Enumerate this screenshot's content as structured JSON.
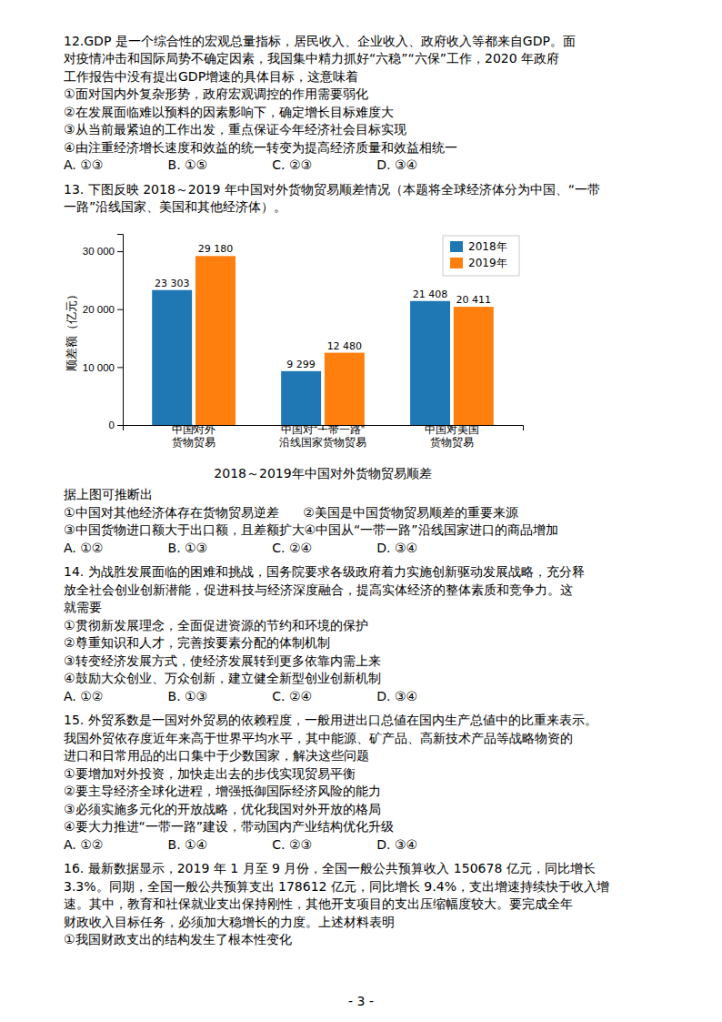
{
  "text_before": [
    [
      "12.GDP 是一个综合性的宏观总量指标，居民收入、企业收入、政府收入等都来自GDP。面",
      "对疫情冲击和国际局势不确定因素，我国集中精力抓好“六稳”“六保”工作，2020 年政府",
      "工作报告中没有提出GDP增速的具体目标，这意味着",
      "①面对国内外复杂形势，政府宏观调控的作用需要弱化",
      "②在发展面临难以预料的因素影响下，确定增长目标难度大",
      "③从当前最紧迫的工作出发，重点保证今年经济社会目标实现",
      "④由注重经济增长速度和效益的统一转变为提高经济质量和效益相统一",
      "A. ①③                B. ①⑤                C. ②③                D. ③④"
    ],
    [
      "13. 下图反映 2018～2019 年中国对外货物贸易顺差情况（本题将全球经济体分为中国、“一带",
      "一路”沿线国家、美国和其他经济体）。"
    ]
  ],
  "chart_data": {
    "type": "bar",
    "title": "2018～2019年中国对外货物贸易顺差",
    "y_label": "顺差额（亿元）",
    "categories": [
      "中国对外\n货物贸易",
      "中国对“一带一路”\n沿线国家货物贸易",
      "中国对美国\n货物贸易"
    ],
    "series": [
      {
        "name": "2018年",
        "values": [
          23303,
          9299,
          21408
        ],
        "value_labels": [
          "23 303",
          "9 299",
          "21 408"
        ]
      },
      {
        "name": "2019年",
        "values": [
          29180,
          12480,
          20411
        ],
        "value_labels": [
          "29 180",
          "12 480",
          "20 411"
        ]
      }
    ],
    "ylim": [
      0,
      33000
    ],
    "yticks": [
      0,
      {
        "value": 10000,
        "label": "10 000"
      },
      {
        "value": 20000,
        "label": "20 000"
      },
      {
        "value": 30000,
        "label": "30 000"
      }
    ],
    "grid": false,
    "legend": "upper right",
    "data_labels": true
  },
  "text_after": [
    [
      "据上图可推断出",
      "①中国对其他经济体存在货物贸易逆差      ②美国是中国货物贸易顺差的重要来源",
      "③中国货物进口额大于出口额，且差额扩大④中国从“一带一路”沿线国家进口的商品增加",
      "A. ①②                B. ①③                C. ②④                D. ③④"
    ],
    [
      "14. 为战胜发展面临的困难和挑战，国务院要求各级政府着力实施创新驱动发展战略，充分释",
      "放全社会创业创新潜能，促进科技与经济深度融合，提高实体经济的整体素质和竞争力。这",
      "就需要",
      "①贯彻新发展理念，全面促进资源的节约和环境的保护",
      "②尊重知识和人才，完善按要素分配的体制机制",
      "③转变经济发展方式，使经济发展转到更多依靠内需上来",
      "④鼓励大众创业、万众创新，建立健全新型创业创新机制",
      "A. ①②                B. ①③                C. ②④                D. ③④"
    ],
    [
      "15. 外贸系数是一国对外贸易的依赖程度，一般用进出口总値在国内生产总値中的比重来表示。",
      "我国外贸依存度近年来高于世界平均水平，其中能源、矿产品、高新技术产品等战略物资的",
      "进口和日常用品的出口集中于少数国家，解决这些问题",
      "①要增加对外投资，加快走出去的步伐实现贸易平衡",
      "②要主导经济全球化进程，增强抵御国际经济风险的能力",
      "③必须实施多元化的开放战略，优化我国对外开放的格局",
      "④要大力推进“一带一路”建设，带动国内产业结构优化升级",
      "A. ①②                B. ①④                C. ②③                D. ③④"
    ],
    [
      "16. 最新数据显示，2019 年 1 月至 9 月份，全国一般公共预算收入 150678 亿元，同比增长",
      "3.3%。同期，全国一般公共预算支出 178612 亿元，同比增长 9.4%，支出增速持续快于收入增",
      "速。其中，教育和社保就业支出保持刚性，其他开支项目的支出压缩幅度较大。要完成全年",
      "财政收入目标任务，必须加大稳增长的力度。上述材料表明",
      "①我国财政支出的结构发生了根本性变化"
    ]
  ],
  "page_number": "- 3 -"
}
